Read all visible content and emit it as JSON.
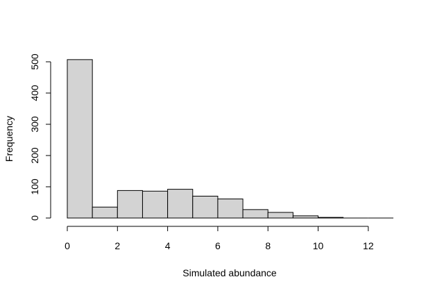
{
  "chart_data": {
    "type": "bar",
    "histogram": true,
    "bins": [
      {
        "start": 0,
        "end": 1,
        "count": 507
      },
      {
        "start": 1,
        "end": 2,
        "count": 35
      },
      {
        "start": 2,
        "end": 3,
        "count": 88
      },
      {
        "start": 3,
        "end": 4,
        "count": 86
      },
      {
        "start": 4,
        "end": 5,
        "count": 92
      },
      {
        "start": 5,
        "end": 6,
        "count": 70
      },
      {
        "start": 6,
        "end": 7,
        "count": 61
      },
      {
        "start": 7,
        "end": 8,
        "count": 27
      },
      {
        "start": 8,
        "end": 9,
        "count": 18
      },
      {
        "start": 9,
        "end": 10,
        "count": 7
      },
      {
        "start": 10,
        "end": 11,
        "count": 2
      },
      {
        "start": 11,
        "end": 12,
        "count": 0
      },
      {
        "start": 12,
        "end": 13,
        "count": 0
      }
    ],
    "title": "",
    "xlabel": "Simulated abundance",
    "ylabel": "Frequency",
    "xlim": [
      0,
      13
    ],
    "ylim": [
      0,
      510
    ],
    "x_ticks": [
      0,
      2,
      4,
      6,
      8,
      10,
      12
    ],
    "y_ticks": [
      0,
      100,
      200,
      300,
      400,
      500
    ],
    "grid": false,
    "bar_fill": "#d3d3d3",
    "bar_stroke": "#000000"
  }
}
